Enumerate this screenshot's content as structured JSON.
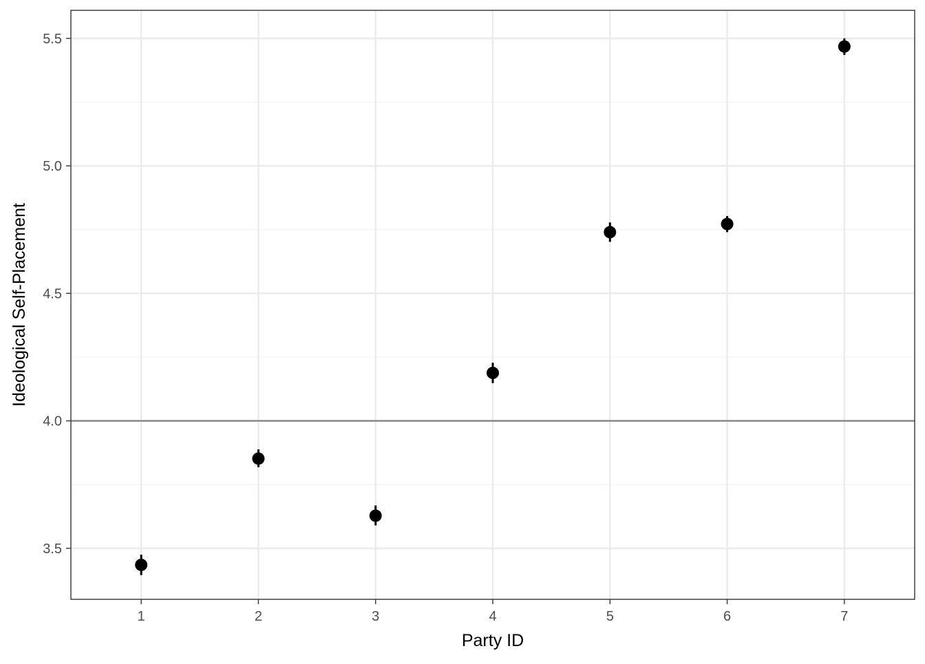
{
  "chart_data": {
    "type": "scatter",
    "title": "",
    "xlabel": "Party ID",
    "ylabel": "Ideological Self-Placement",
    "x": [
      1,
      2,
      3,
      4,
      5,
      6,
      7
    ],
    "y": [
      3.435,
      3.852,
      3.628,
      4.188,
      4.74,
      4.772,
      5.468
    ],
    "error_low": [
      3.395,
      3.818,
      3.59,
      4.148,
      4.702,
      4.74,
      5.435
    ],
    "error_high": [
      3.475,
      3.888,
      3.668,
      4.228,
      4.778,
      4.803,
      5.5
    ],
    "xlim": [
      0.4,
      7.6
    ],
    "ylim": [
      3.3,
      5.61
    ],
    "x_ticks": [
      1,
      2,
      3,
      4,
      5,
      6,
      7
    ],
    "x_tick_labels": [
      "1",
      "2",
      "3",
      "4",
      "5",
      "6",
      "7"
    ],
    "y_ticks": [
      3.5,
      4.0,
      4.5,
      5.0,
      5.5
    ],
    "y_tick_labels": [
      "3.5",
      "4.0",
      "4.5",
      "5.0",
      "5.5"
    ],
    "y_minor_ticks": [
      3.75,
      4.25,
      4.75,
      5.25
    ],
    "reference_line_y": 4.0,
    "grid": true,
    "legend": "none",
    "colors": {
      "point": "#000000",
      "panel_border": "#333333",
      "grid_major": "#ebebeb",
      "grid_minor": "#f3f3f3",
      "reference_line": "#7f7f7f",
      "tick_label": "#4d4d4d"
    }
  }
}
